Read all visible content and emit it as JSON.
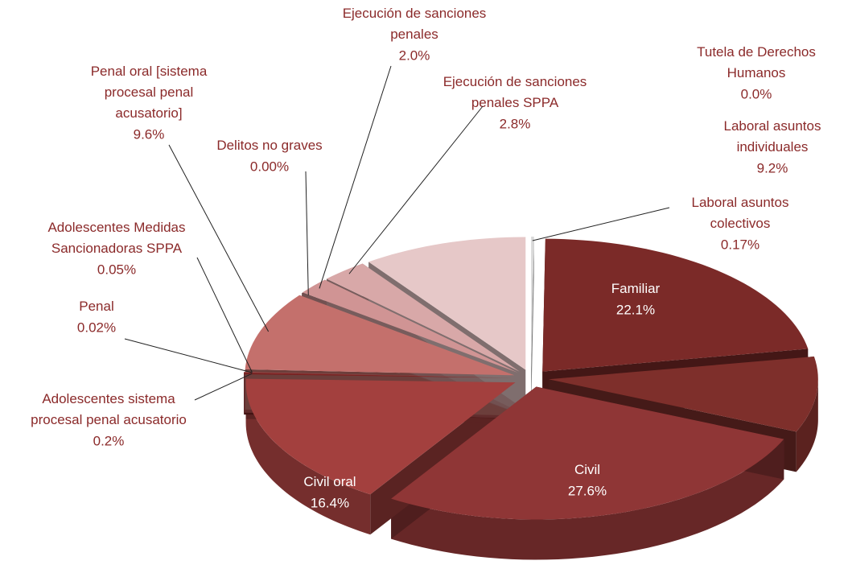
{
  "chart_data": {
    "type": "pie3d",
    "categories": [
      "Laboral asuntos colectivos",
      "Familiar",
      "Laboral asuntos individuales",
      "Civil",
      "Civil oral",
      "Adolescentes sistema procesal penal acusatorio",
      "Penal",
      "Adolescentes Medidas Sancionadoras SPPA",
      "Penal oral [sistema procesal penal acusatorio]",
      "Delitos no graves",
      "Ejecución de sanciones penales",
      "Ejecución de sanciones penales SPPA",
      null,
      "Tutela de Derechos Humanos"
    ],
    "values": [
      0.17,
      22.1,
      9.2,
      27.6,
      16.4,
      0.2,
      0.02,
      0.05,
      9.6,
      0,
      2.0,
      2.8,
      9.9,
      0
    ],
    "value_labels": [
      "0.17%",
      "22.1%",
      "9.2%",
      "27.6%",
      "16.4%",
      "0.2%",
      "0.02%",
      "0.05%",
      "9.6%",
      "0.00%",
      "2.0%",
      "2.8%",
      null,
      "0.0%"
    ],
    "colors": [
      "#d9d9d9",
      "#7b2a28",
      "#7e2f2b",
      "#8f3636",
      "#a3403e",
      "#7a2222",
      "#8a3030",
      "#b05050",
      "#c4706c",
      "#c88080",
      "#d09494",
      "#d8a8a8",
      "#e6c8c8",
      "#eeeeee"
    ]
  }
}
